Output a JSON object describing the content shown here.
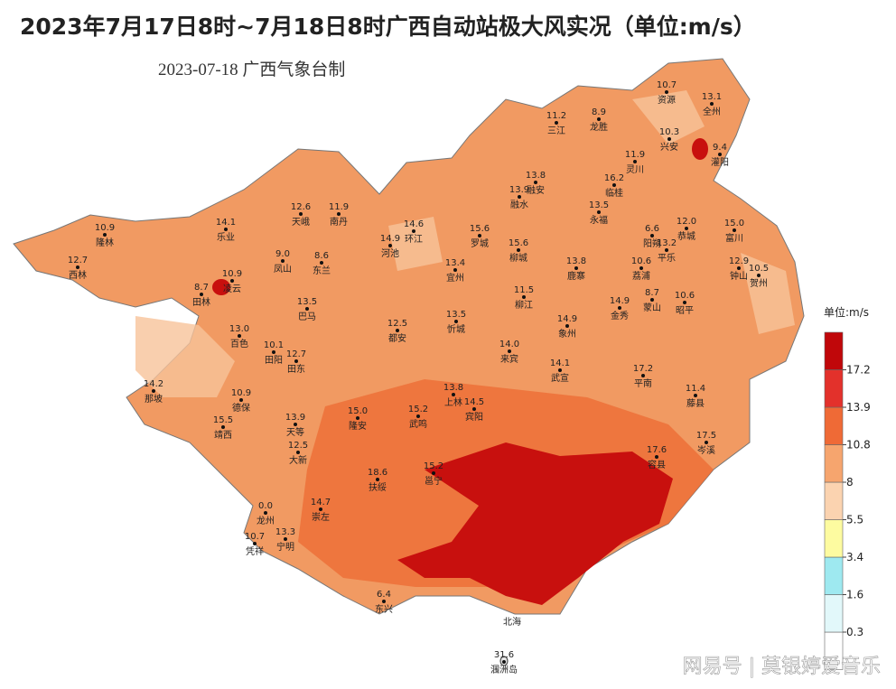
{
  "header": {
    "title": "2023年7月17日8时~7月18日8时广西自动站极大风实况（单位:m/s）",
    "subtitle": "2023-07-18  广西气象台制"
  },
  "legend": {
    "title": "单位:m/s",
    "ticks": [
      0.3,
      1.6,
      3.4,
      5.5,
      8,
      10.8,
      13.9,
      17.2
    ],
    "colors": [
      "#ffffff",
      "#e2f8fa",
      "#9ee9f0",
      "#fdfba0",
      "#fbd3b0",
      "#f6a56e",
      "#ef6a36",
      "#e3312b",
      "#c0070a"
    ]
  },
  "stations": [
    {
      "value": 10.7,
      "name": "资源"
    },
    {
      "value": 13.1,
      "name": "全州"
    },
    {
      "value": 11.2,
      "name": "三江"
    },
    {
      "value": 8.9,
      "name": "龙胜"
    },
    {
      "value": 10.3,
      "name": "兴安"
    },
    {
      "value": 9.4,
      "name": "灌阳"
    },
    {
      "value": 11.9,
      "name": "灵川"
    },
    {
      "value": 13.8,
      "name": "融安"
    },
    {
      "value": 13.9,
      "name": "融水"
    },
    {
      "value": 16.2,
      "name": "临桂"
    },
    {
      "value": 13.5,
      "name": "永福"
    },
    {
      "value": 12.6,
      "name": "天峨"
    },
    {
      "value": 11.9,
      "name": "南丹"
    },
    {
      "value": 10.9,
      "name": "隆林"
    },
    {
      "value": 14.1,
      "name": "乐业"
    },
    {
      "value": 14.6,
      "name": "环江"
    },
    {
      "value": 15.6,
      "name": "罗城"
    },
    {
      "value": 6.6,
      "name": "阳朔"
    },
    {
      "value": 12.0,
      "label": "12.0",
      "name": "恭城"
    },
    {
      "value": 15.0,
      "label": "15.0",
      "name": "富川"
    },
    {
      "value": 14.9,
      "name": "河池"
    },
    {
      "value": 15.6,
      "name": "柳城"
    },
    {
      "value": 13.2,
      "name": "平乐"
    },
    {
      "value": 12.7,
      "name": "西林"
    },
    {
      "value": 9.0,
      "label": "9.0",
      "name": "凤山"
    },
    {
      "value": 8.6,
      "name": "东兰"
    },
    {
      "value": 13.4,
      "name": "宜州"
    },
    {
      "value": 13.8,
      "name": "鹿寨"
    },
    {
      "value": 10.6,
      "name": "荔浦"
    },
    {
      "value": 12.9,
      "name": "钟山"
    },
    {
      "value": 10.5,
      "name": "贺州"
    },
    {
      "value": 8.7,
      "name": "田林"
    },
    {
      "value": 10.9,
      "name": "凌云"
    },
    {
      "value": 13.5,
      "name": "巴马"
    },
    {
      "value": 11.5,
      "name": "柳江"
    },
    {
      "value": 14.9,
      "name": "金秀"
    },
    {
      "value": 8.7,
      "name": "蒙山"
    },
    {
      "value": 10.6,
      "name": "昭平"
    },
    {
      "value": 13.0,
      "label": "13.0",
      "name": "百色"
    },
    {
      "value": 12.5,
      "name": "都安"
    },
    {
      "value": 13.5,
      "name": "忻城"
    },
    {
      "value": 14.9,
      "name": "象州"
    },
    {
      "value": 10.1,
      "name": "田阳"
    },
    {
      "value": 12.7,
      "name": "田东"
    },
    {
      "value": 14.0,
      "label": "14.0",
      "name": "来宾"
    },
    {
      "value": 14.1,
      "name": "武宣"
    },
    {
      "value": 17.2,
      "name": "平南"
    },
    {
      "value": 14.2,
      "name": "那坡"
    },
    {
      "value": 11.4,
      "name": "藤县"
    },
    {
      "value": 10.9,
      "name": "德保"
    },
    {
      "value": 13.8,
      "name": "上林"
    },
    {
      "value": 14.5,
      "name": "宾阳"
    },
    {
      "value": 15.0,
      "label": "15.0",
      "name": "隆安"
    },
    {
      "value": 15.2,
      "name": "武鸣"
    },
    {
      "value": 13.9,
      "name": "天等"
    },
    {
      "value": 15.5,
      "name": "靖西"
    },
    {
      "value": 17.5,
      "name": "岑溪"
    },
    {
      "value": 17.6,
      "name": "容县"
    },
    {
      "value": 12.5,
      "name": "大新"
    },
    {
      "value": 15.2,
      "name": "邕宁"
    },
    {
      "value": 18.6,
      "name": "扶绥"
    },
    {
      "value": 0.0,
      "label": "0.0",
      "name": "龙州"
    },
    {
      "value": 14.7,
      "name": "崇左"
    },
    {
      "value": 13.3,
      "name": "宁明"
    },
    {
      "value": 10.7,
      "name": "凭祥"
    },
    {
      "value": 6.4,
      "name": "东兴"
    },
    {
      "value": 31.6,
      "name": "涠洲岛"
    }
  ],
  "other_labels": [
    "北海"
  ],
  "watermark": "网易号 | 莫银婷爱音乐"
}
